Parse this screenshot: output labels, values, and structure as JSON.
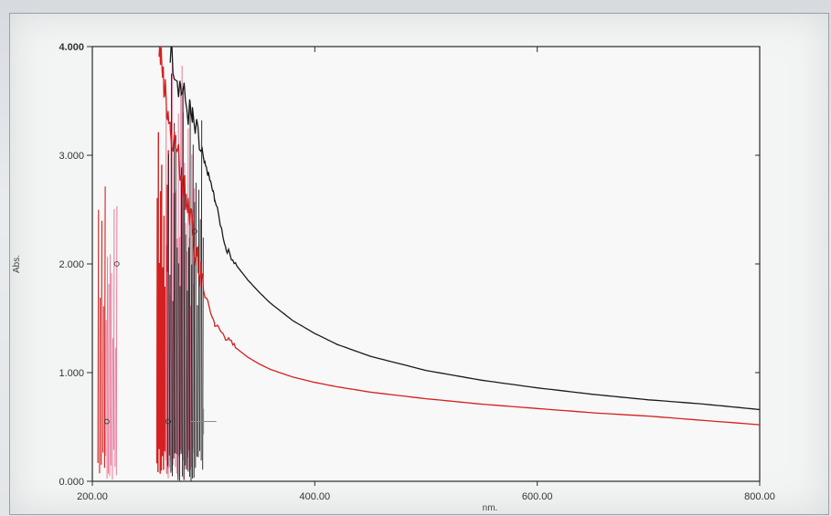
{
  "chart_data": {
    "type": "line",
    "xlabel": "nm.",
    "ylabel": "Abs.",
    "xlim": [
      200,
      800
    ],
    "ylim": [
      0,
      4
    ],
    "x_ticks": [
      200,
      400,
      600,
      800
    ],
    "x_tick_labels": [
      "200.00",
      "400.00",
      "600.00",
      "800.00"
    ],
    "y_ticks": [
      0,
      1,
      2,
      3,
      4
    ],
    "y_tick_labels": [
      "0.000",
      "1.000",
      "2.000",
      "3.000",
      "4.000"
    ],
    "grid": false,
    "series": [
      {
        "color": "#1a1a1a",
        "x": [
          270,
          280,
          290,
          300,
          305,
          310,
          320,
          330,
          340,
          350,
          360,
          380,
          400,
          420,
          450,
          500,
          550,
          600,
          650,
          700,
          750,
          800
        ],
        "y": [
          4.0,
          3.6,
          3.3,
          2.95,
          2.8,
          2.6,
          2.15,
          1.98,
          1.85,
          1.74,
          1.64,
          1.48,
          1.36,
          1.26,
          1.15,
          1.02,
          0.93,
          0.86,
          0.8,
          0.75,
          0.71,
          0.66
        ]
      },
      {
        "color": "#d42020",
        "x": [
          260,
          265,
          270,
          280,
          285,
          290,
          295,
          300,
          310,
          320,
          330,
          340,
          350,
          360,
          380,
          400,
          420,
          450,
          500,
          550,
          600,
          650,
          700,
          750,
          800
        ],
        "y": [
          4.0,
          3.6,
          3.3,
          2.85,
          2.6,
          2.3,
          2.0,
          1.75,
          1.45,
          1.32,
          1.22,
          1.14,
          1.08,
          1.03,
          0.96,
          0.91,
          0.87,
          0.82,
          0.76,
          0.71,
          0.67,
          0.63,
          0.6,
          0.56,
          0.52
        ]
      }
    ]
  }
}
